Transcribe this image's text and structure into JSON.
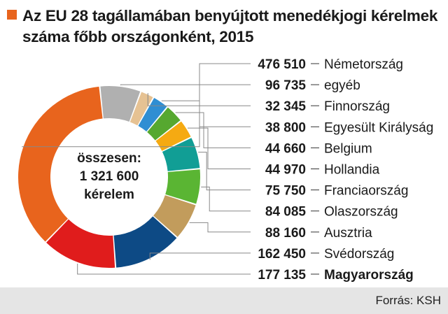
{
  "chart_data": {
    "type": "pie",
    "title": "Az EU 28 tagállamában benyújtott menedékjogi kérelmek száma főbb országonként, 2015",
    "center_label": [
      "összesen:",
      "1 321 600",
      "kérelem"
    ],
    "categories": [
      "Németország",
      "egyéb",
      "Finnország",
      "Egyesült Királyság",
      "Belgium",
      "Hollandia",
      "Franciaország",
      "Olaszország",
      "Ausztria",
      "Svédország",
      "Magyarország"
    ],
    "values": [
      476510,
      96735,
      32345,
      38800,
      44660,
      44970,
      75750,
      84085,
      88160,
      162450,
      177135
    ],
    "value_labels": [
      "476 510",
      "96 735",
      "32 345",
      "38 800",
      "44 660",
      "44 970",
      "75 750",
      "84 085",
      "88 160",
      "162 450",
      "177 135"
    ],
    "colors": [
      "#e8641d",
      "#b0b0b0",
      "#e6c293",
      "#2f8ed3",
      "#56a830",
      "#f5aa12",
      "#119e95",
      "#5ab533",
      "#c29c5c",
      "#0d4a85",
      "#e01c1c"
    ],
    "highlight": "Magyarország",
    "slice_order": [
      "egyéb",
      "Finnország",
      "Egyesült Királyság",
      "Belgium",
      "Hollandia",
      "Franciaország",
      "Olaszország",
      "Ausztria",
      "Svédország",
      "Magyarország",
      "Németország"
    ],
    "total": 1321600
  },
  "title_marker_color": "#e8641d",
  "footer": {
    "source": "Forrás: KSH"
  }
}
